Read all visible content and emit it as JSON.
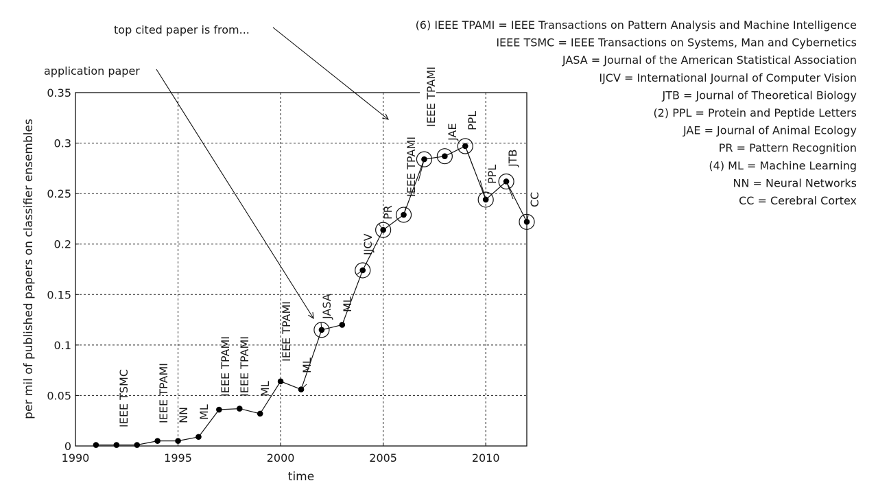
{
  "chart_data": {
    "type": "line",
    "xlabel": "time",
    "ylabel": "per mil of published papers on classifier ensembles",
    "xlim": [
      1990,
      2012
    ],
    "ylim": [
      0,
      0.35
    ],
    "x_ticks": [
      "1990",
      "1995",
      "2000",
      "2005",
      "2010"
    ],
    "y_ticks": [
      "0",
      "0.05",
      "0.1",
      "0.15",
      "0.2",
      "0.25",
      "0.3",
      "0.35"
    ],
    "grid": true,
    "x": [
      1991,
      1992,
      1993,
      1994,
      1995,
      1996,
      1997,
      1998,
      1999,
      2000,
      2001,
      2002,
      2003,
      2004,
      2005,
      2006,
      2007,
      2008,
      2009,
      2010,
      2011,
      2012
    ],
    "y": [
      0.001,
      0.001,
      0.001,
      0.005,
      0.005,
      0.009,
      0.036,
      0.037,
      0.032,
      0.064,
      0.056,
      0.115,
      0.12,
      0.174,
      0.214,
      0.229,
      0.284,
      0.287,
      0.297,
      0.244,
      0.262,
      0.222
    ],
    "circled_years": [
      2002,
      2004,
      2005,
      2006,
      2007,
      2008,
      2009,
      2010,
      2011,
      2012
    ],
    "venue_labels": [
      {
        "year": 1992,
        "text": "IEEE TSMC"
      },
      {
        "year": 1994,
        "text": "IEEE TPAMI"
      },
      {
        "year": 1995,
        "text": "NN"
      },
      {
        "year": 1996,
        "text": "ML"
      },
      {
        "year": 1997,
        "text": "IEEE TPAMI"
      },
      {
        "year": 1998,
        "text": "IEEE TPAMI"
      },
      {
        "year": 1999,
        "text": "ML"
      },
      {
        "year": 2000,
        "text": "IEEE TPAMI"
      },
      {
        "year": 2001,
        "text": "ML"
      },
      {
        "year": 2002,
        "text": "JASA"
      },
      {
        "year": 2003,
        "text": "ML"
      },
      {
        "year": 2004,
        "text": "IJCV"
      },
      {
        "year": 2005,
        "text": "PR"
      },
      {
        "year": 2006,
        "text": "IEEE TPAMI"
      },
      {
        "year": 2007,
        "text": "IEEE TPAMI"
      },
      {
        "year": 2008,
        "text": "JAE"
      },
      {
        "year": 2009,
        "text": "PPL"
      },
      {
        "year": 2010,
        "text": "PPL"
      },
      {
        "year": 2011,
        "text": "JTB"
      },
      {
        "year": 2012,
        "text": "CC"
      }
    ],
    "annotations": [
      {
        "text": "application paper",
        "target_year": 2002
      },
      {
        "text": "top cited paper is from...",
        "target_year": 2005
      }
    ],
    "legend": [
      "(6) IEEE TPAMI = IEEE Transactions on Pattern Analysis and Machine Intelligence",
      "IEEE TSMC = IEEE Transactions on Systems, Man and Cybernetics",
      "JASA = Journal of the American Statistical Association",
      "IJCV = International Journal of Computer Vision",
      "JTB = Journal of Theoretical Biology",
      "(2) PPL = Protein and Peptide Letters",
      "JAE = Journal of Animal Ecology",
      "PR = Pattern Recognition",
      "(4) ML =  Machine Learning",
      "NN = Neural Networks",
      "CC = Cerebral Cortex"
    ]
  }
}
